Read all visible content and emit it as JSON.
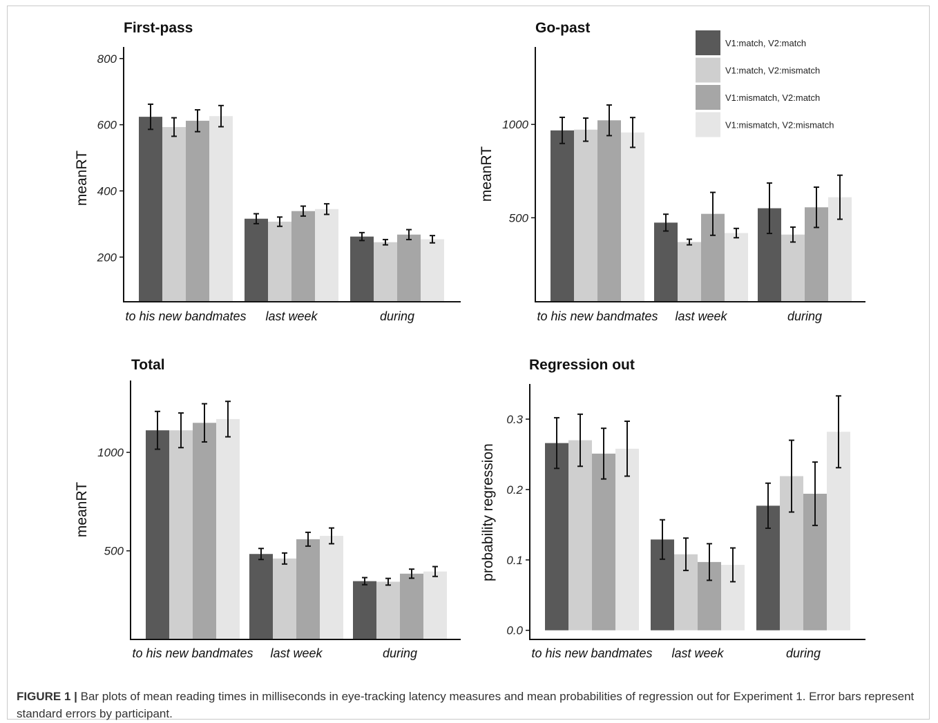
{
  "categories": [
    "to his new bandmates",
    "last week",
    "during"
  ],
  "legend": [
    {
      "label": "V1:match, V2:match",
      "color": "#595959"
    },
    {
      "label": "V1:match, V2:mismatch",
      "color": "#cfcfcf"
    },
    {
      "label": "V1:mismatch, V2:match",
      "color": "#a6a6a6"
    },
    {
      "label": "V1:mismatch, V2:mismatch",
      "color": "#e6e6e6"
    }
  ],
  "caption": {
    "label": "FIGURE 1 |",
    "text": "Bar plots of mean reading times in milliseconds in eye-tracking latency measures and mean probabilities of regression out for Experiment 1. Error bars represent standard errors by participant."
  },
  "chart_data": [
    {
      "type": "bar",
      "title": "First-pass",
      "ylabel": "meanRT",
      "ylim": [
        65,
        835
      ],
      "yticks": [
        200,
        400,
        600,
        800
      ],
      "ytick_labels": [
        "200",
        "400",
        "600",
        "800"
      ],
      "categories": [
        "to his new bandmates",
        "last week",
        "during"
      ],
      "series": [
        {
          "name": "V1:match, V2:match",
          "values": [
            624,
            316,
            262
          ],
          "errors": [
            38,
            15,
            12
          ]
        },
        {
          "name": "V1:match, V2:mismatch",
          "values": [
            593,
            307,
            245
          ],
          "errors": [
            28,
            14,
            8
          ]
        },
        {
          "name": "V1:mismatch, V2:match",
          "values": [
            612,
            339,
            268
          ],
          "errors": [
            33,
            15,
            15
          ]
        },
        {
          "name": "V1:mismatch, V2:mismatch",
          "values": [
            626,
            345,
            254
          ],
          "errors": [
            32,
            16,
            11
          ]
        }
      ]
    },
    {
      "type": "bar",
      "title": "Go-past",
      "ylabel": "meanRT",
      "ylim": [
        50,
        1415
      ],
      "yticks": [
        500,
        1000
      ],
      "ytick_labels": [
        "500",
        "1000"
      ],
      "categories": [
        "to his new bandmates",
        "last week",
        "during"
      ],
      "series": [
        {
          "name": "V1:match, V2:match",
          "values": [
            968,
            474,
            551
          ],
          "errors": [
            70,
            45,
            135
          ]
        },
        {
          "name": "V1:match, V2:mismatch",
          "values": [
            972,
            370,
            410
          ],
          "errors": [
            62,
            15,
            40
          ]
        },
        {
          "name": "V1:mismatch, V2:match",
          "values": [
            1022,
            521,
            556
          ],
          "errors": [
            82,
            115,
            108
          ]
        },
        {
          "name": "V1:mismatch, V2:mismatch",
          "values": [
            957,
            418,
            610
          ],
          "errors": [
            80,
            25,
            118
          ]
        }
      ]
    },
    {
      "type": "bar",
      "title": "Total",
      "ylabel": "meanRT",
      "ylim": [
        50,
        1365
      ],
      "yticks": [
        500,
        1000
      ],
      "ytick_labels": [
        "500",
        "1000"
      ],
      "categories": [
        "to his new bandmates",
        "last week",
        "during"
      ],
      "series": [
        {
          "name": "V1:match, V2:match",
          "values": [
            1112,
            484,
            346
          ],
          "errors": [
            96,
            28,
            18
          ]
        },
        {
          "name": "V1:match, V2:mismatch",
          "values": [
            1112,
            461,
            343
          ],
          "errors": [
            88,
            28,
            17
          ]
        },
        {
          "name": "V1:mismatch, V2:match",
          "values": [
            1150,
            559,
            384
          ],
          "errors": [
            97,
            35,
            23
          ]
        },
        {
          "name": "V1:mismatch, V2:mismatch",
          "values": [
            1169,
            576,
            395
          ],
          "errors": [
            90,
            40,
            25
          ]
        }
      ]
    },
    {
      "type": "bar",
      "title": "Regression out",
      "ylabel": "probability regression",
      "ylim": [
        -0.013,
        0.35
      ],
      "yticks": [
        0,
        0.1,
        0.2,
        0.3
      ],
      "ytick_labels": [
        "0.0",
        "0.1",
        "0.2",
        "0.3"
      ],
      "categories": [
        "to his new bandmates",
        "last week",
        "during"
      ],
      "series": [
        {
          "name": "V1:match, V2:match",
          "values": [
            0.266,
            0.129,
            0.177
          ],
          "errors": [
            0.036,
            0.028,
            0.032
          ]
        },
        {
          "name": "V1:match, V2:mismatch",
          "values": [
            0.27,
            0.108,
            0.219
          ],
          "errors": [
            0.037,
            0.023,
            0.051
          ]
        },
        {
          "name": "V1:mismatch, V2:match",
          "values": [
            0.251,
            0.097,
            0.194
          ],
          "errors": [
            0.036,
            0.026,
            0.045
          ]
        },
        {
          "name": "V1:mismatch, V2:mismatch",
          "values": [
            0.258,
            0.093,
            0.282
          ],
          "errors": [
            0.039,
            0.024,
            0.051
          ]
        }
      ]
    }
  ]
}
